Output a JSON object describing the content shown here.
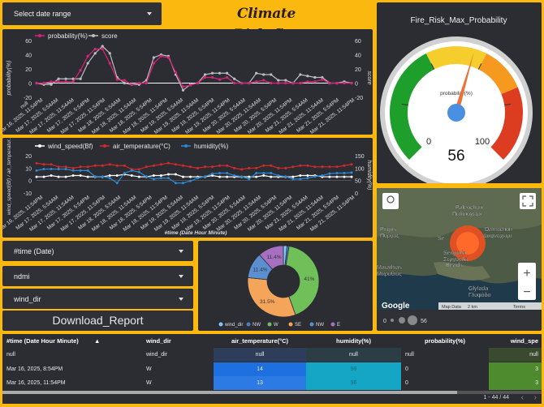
{
  "header": {
    "date_range_label": "Select date range",
    "title": "Climate Risk_fire",
    "gauge_title": "Fire_Risk_Max_Probability"
  },
  "chart1": {
    "legend": [
      "probability(%)",
      "score"
    ],
    "y_left_label": "probability(%)",
    "y_right_label": "score",
    "y_ticks": [
      "60",
      "40",
      "20",
      "0",
      "-20"
    ],
    "null_label": "null",
    "x_labels": [
      "Mar 16, 2025, 11:54PM",
      "Mar 17, 2025, 5:54AM",
      "Mar 17, 2025, 11:54AM",
      "Mar 17, 2025, 5:54PM",
      "Mar 17, 2025, 11:54PM",
      "Mar 18, 2025, 5:54AM",
      "Mar 18, 2025, 11:54AM",
      "Mar 18, 2025, 5:54PM",
      "Mar 18, 2025, 11:54PM",
      "Mar 19, 2025, 5:54AM",
      "Mar 19, 2025, 11:54AM",
      "Mar 19, 2025, 5:54PM",
      "Mar 19, 2025, 11:54PM",
      "Mar 20, 2025, 5:54AM",
      "Mar 20, 2025, 11:54AM",
      "Mar 20, 2025, 5:54PM",
      "Mar 20, 2025, 11:54PM",
      "Mar 21, 2025, 5:54AM",
      "Mar 21, 2025, 11:54AM",
      "Mar 21, 2025, 5:54PM",
      "Mar 21, 2025, 11:54PM"
    ]
  },
  "chart2": {
    "legend": [
      "wind_speed(Bf)",
      "air_temperature(°C)",
      "humidity(%)"
    ],
    "y_left_label": "wind_speed(Bf) / air_temperatur...",
    "y_right_label": "humidity(%)",
    "y_left_ticks": [
      "20",
      "10",
      "0",
      "-10"
    ],
    "y_right_ticks": [
      "150",
      "100",
      "50",
      "0"
    ],
    "x_title": "#time (Date Hour Minute)",
    "x_labels": [
      "Mar 16, 2025, 11:54PM",
      "Mar 17, 2025, 5:54AM",
      "Mar 17, 2025, 11:54AM",
      "Mar 17, 2025, 5:54PM",
      "Mar 17, 2025, 11:54PM",
      "Mar 18, 2025, 5:54AM",
      "Mar 18, 2025, 11:54AM",
      "Mar 18, 2025, 5:54PM",
      "Mar 18, 2025, 11:54PM",
      "Mar 19, 2025, 5:54AM",
      "Mar 19, 2025, 11:54AM",
      "Mar 19, 2025, 5:54PM",
      "Mar 19, 2025, 11:54PM",
      "Mar 20, 2025, 5:54AM",
      "Mar 20, 2025, 11:54AM",
      "Mar 20, 2025, 5:54PM",
      "Mar 20, 2025, 11:54PM",
      "Mar 21, 2025, 5:54AM",
      "Mar 21, 2025, 11:54AM",
      "Mar 21, 2025, 5:54PM",
      "Mar 21, 2025, 11:54PM"
    ]
  },
  "gauge": {
    "metric_label": "probability(%)",
    "min_label": "0",
    "max_label": "100",
    "value": 56,
    "value_label": "56",
    "colors": [
      "#1e9e2b",
      "#f5ce2e",
      "#f59a1e",
      "#dc3c20"
    ]
  },
  "controls": {
    "time_filter": "#time (Date)",
    "ndmi_filter": "ndmi",
    "wind_filter": "wind_dir",
    "download_label": "Download_Report"
  },
  "map": {
    "labels": [
      "Paleochori",
      "Παλαιοχώρι",
      "Pirgos",
      "Πύργος",
      "Dafnochori",
      "Δαφνοχώρι",
      "Marathias",
      "Μαραθιάς",
      "Sergoula",
      "Σεργούλα",
      "Beach",
      "Glyfada",
      "Γλυφάδα",
      "Se"
    ],
    "google_label": "Google",
    "attribution": [
      "Map Data",
      "2 km",
      "Terms"
    ],
    "scale_items": [
      "0",
      "56"
    ],
    "zoom_in": "+",
    "zoom_out": "−"
  },
  "chart_data": [
    {
      "type": "line",
      "series": [
        {
          "name": "probability(%)",
          "color": "#d6247a",
          "values": [
            0,
            0,
            2,
            2,
            2,
            2,
            18,
            38,
            48,
            48,
            28,
            5,
            4,
            -2,
            0,
            0,
            28,
            38,
            36,
            15,
            -5,
            -3,
            0,
            8,
            8,
            5,
            8,
            0,
            0,
            0,
            2,
            4,
            0,
            0,
            0,
            0,
            0,
            2,
            2,
            5,
            0,
            0,
            0,
            0
          ]
        },
        {
          "name": "score",
          "color": "#bdbdbd",
          "values": [
            0,
            -2,
            -2,
            6,
            6,
            6,
            6,
            28,
            42,
            52,
            42,
            8,
            0,
            -2,
            -2,
            4,
            36,
            40,
            38,
            12,
            -10,
            -2,
            0,
            12,
            14,
            14,
            14,
            6,
            0,
            0,
            14,
            12,
            12,
            4,
            4,
            0,
            12,
            10,
            8,
            8,
            0,
            0,
            2,
            0
          ]
        }
      ],
      "ylim": [
        -20,
        60
      ]
    },
    {
      "type": "line",
      "series": [
        {
          "name": "wind_speed(Bf)",
          "color": "#ffffff",
          "values": [
            3,
            3,
            4,
            3,
            3,
            4,
            4,
            3,
            3,
            3,
            4,
            4,
            5,
            4,
            3,
            3,
            4,
            4,
            5,
            5,
            3,
            3,
            3,
            3,
            4,
            3,
            3,
            3,
            3,
            3,
            3,
            4,
            3,
            3,
            3,
            3,
            4,
            4,
            4,
            3,
            3,
            3,
            3,
            3
          ]
        },
        {
          "name": "air_temperature(°C)",
          "color": "#d62a2a",
          "values": [
            14,
            13,
            13,
            11,
            11,
            10,
            11,
            11,
            12,
            12,
            13,
            12,
            12,
            9,
            9,
            11,
            12,
            13,
            14,
            13,
            12,
            11,
            10,
            11,
            11,
            12,
            12,
            10,
            9,
            10,
            10,
            12,
            12,
            10,
            10,
            11,
            12,
            12,
            11,
            11,
            11,
            11,
            12,
            13
          ]
        },
        {
          "name": "humidity(%)",
          "color": "#2a8ad6",
          "values": [
            90,
            96,
            96,
            96,
            96,
            90,
            90,
            90,
            66,
            66,
            60,
            40,
            80,
            90,
            84,
            66,
            56,
            60,
            60,
            40,
            40,
            48,
            60,
            66,
            78,
            80,
            80,
            70,
            66,
            56,
            80,
            80,
            80,
            70,
            66,
            56,
            56,
            60,
            66,
            70,
            78,
            80,
            80,
            82
          ]
        }
      ],
      "ylim": [
        -10,
        20
      ],
      "y2lim": [
        0,
        150
      ]
    },
    {
      "type": "pie",
      "donut": true,
      "categories": [
        "wind_dir",
        "NW",
        "W",
        "SE",
        "NW",
        "E"
      ],
      "values": [
        1.6,
        0.9,
        41,
        31.5,
        11.4,
        11.4
      ],
      "labels": [
        "",
        "",
        "41%",
        "31.5%",
        "11.4%",
        "11.4%"
      ],
      "colors": [
        "#7fc8f8",
        "#4a7fc8",
        "#70c05a",
        "#f5a55a",
        "#5b8fd0",
        "#a66fc0"
      ],
      "legend": [
        "wind_dir",
        "NW",
        "W",
        "SE",
        "NW",
        "E"
      ]
    },
    {
      "type": "table",
      "columns": [
        "#time (Date Hour Minute)",
        "wind_dir",
        "air_temperature(°C)",
        "humidity(%)",
        "probability(%)",
        "wind_spe"
      ],
      "sort_indicator": "▲",
      "rows": [
        [
          "null",
          "wind_dir",
          "null",
          "null",
          "null",
          "null"
        ],
        [
          "Mar 16, 2025, 8:54PM",
          "W",
          "14",
          "98",
          "0",
          "3"
        ],
        [
          "Mar 16, 2025, 11:54PM",
          "W",
          "13",
          "96",
          "0",
          "3"
        ]
      ],
      "pagination": "1 - 44 / 44"
    }
  ]
}
